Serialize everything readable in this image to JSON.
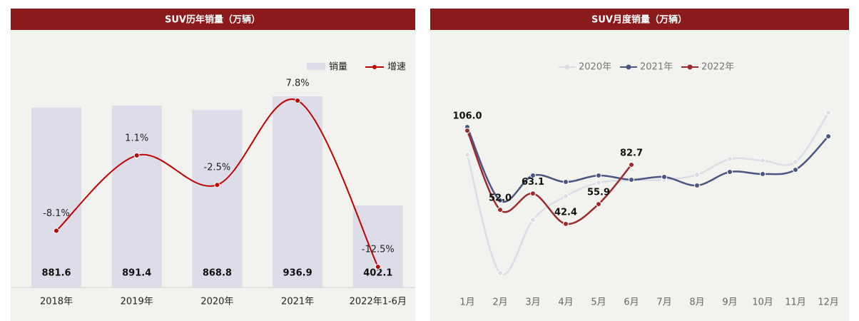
{
  "chart_data": [
    {
      "type": "bar",
      "title": "SUV历年销量（万辆）",
      "categories": [
        "2018年",
        "2019年",
        "2020年",
        "2021年",
        "2022年1-6月"
      ],
      "series": [
        {
          "name": "销量",
          "type": "bar",
          "color": "#dcdde9",
          "values": [
            881.6,
            891.4,
            868.8,
            936.9,
            402.1
          ],
          "value_labels": [
            "881.6",
            "891.4",
            "868.8",
            "936.9",
            "402.1"
          ]
        },
        {
          "name": "增速",
          "type": "line",
          "axis": "y2",
          "color": "#c00000",
          "values": [
            -8.1,
            1.1,
            -2.5,
            7.8,
            -12.5
          ],
          "value_labels": [
            "-8.1%",
            "1.1%",
            "-2.5%",
            "7.8%",
            "-12.5%"
          ]
        }
      ],
      "legend": "top-right"
    },
    {
      "type": "line",
      "title": "SUV月度销量（万辆）",
      "categories": [
        "1月",
        "2月",
        "3月",
        "4月",
        "5月",
        "6月",
        "7月",
        "8月",
        "9月",
        "10月",
        "11月",
        "12月"
      ],
      "series": [
        {
          "name": "2020年",
          "color": "#dcdde6",
          "values": [
            89.5,
            8.8,
            45.2,
            61.3,
            70.5,
            72.0,
            72.5,
            75.9,
            86.6,
            85.6,
            84.6,
            118.2
          ]
        },
        {
          "name": "2021年",
          "color": "#4a5582",
          "values": [
            108.5,
            58.4,
            75.4,
            71.0,
            75.4,
            72.5,
            74.4,
            68.6,
            77.8,
            76.4,
            79.3,
            102.1
          ]
        },
        {
          "name": "2022年",
          "color": "#9b2a2a",
          "values": [
            106.0,
            52.0,
            63.1,
            42.4,
            55.9,
            82.7,
            null,
            null,
            null,
            null,
            null,
            null
          ],
          "value_labels": [
            "106.0",
            "52.0",
            "63.1",
            "42.4",
            "55.9",
            "82.7",
            null,
            null,
            null,
            null,
            null,
            null
          ]
        }
      ],
      "legend": "top"
    }
  ]
}
